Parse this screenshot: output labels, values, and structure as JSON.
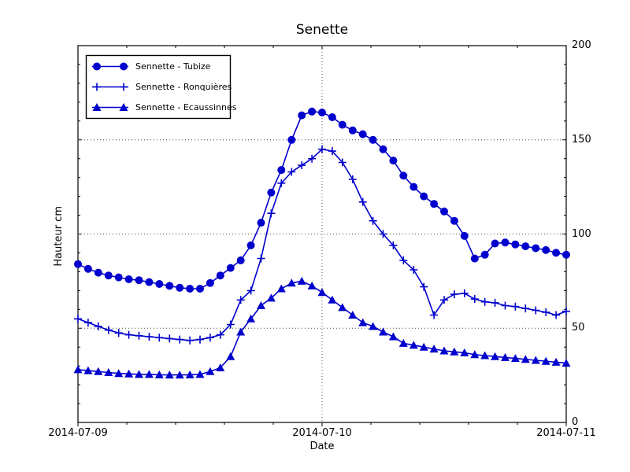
{
  "figure": {
    "background": "#ffffff",
    "accent_color": "#0000cd",
    "axis_color": "#000000",
    "grid_style": "dotted"
  },
  "chart_data": {
    "type": "line",
    "title": "Senette",
    "xlabel": "Date",
    "ylabel": "Hauteur cm",
    "x_tick_labels": [
      "2014-07-09",
      "2014-07-10",
      "2014-07-11"
    ],
    "y_tick_labels": [
      "0",
      "50",
      "100",
      "150",
      "200"
    ],
    "y_ticks": [
      0,
      50,
      100,
      150,
      200
    ],
    "ylim": [
      0,
      200
    ],
    "x_start": "2014-07-09 00:00",
    "x_end": "2014-07-11 00:00",
    "x_step_hours": 1,
    "grid": "major gridlines dotted; y tick labels on right side",
    "legend_position": "upper left",
    "line_color": "#0000cd",
    "series": [
      {
        "name": "Sennette - Tubize",
        "marker": "circle",
        "values": [
          84,
          81.5,
          79.5,
          78,
          77,
          76,
          75.5,
          74.5,
          73.5,
          72.5,
          71.5,
          71,
          71,
          74,
          78,
          82,
          86,
          94,
          106,
          122,
          134,
          150,
          163,
          165,
          164.5,
          162,
          158,
          155,
          153,
          150,
          145,
          139,
          131,
          125,
          120,
          116,
          112,
          107,
          99,
          87,
          89,
          95,
          95.5,
          94.5,
          93.5,
          92.5,
          91.5,
          90,
          89
        ]
      },
      {
        "name": "Sennette - Ronquières",
        "marker": "plus",
        "values": [
          55,
          53,
          51,
          49,
          47.5,
          46.5,
          46,
          45.5,
          45,
          44.5,
          44,
          43.5,
          44,
          45,
          46.5,
          52,
          65,
          70,
          87,
          111,
          127,
          133,
          136.5,
          140,
          145,
          144,
          138,
          129,
          117,
          107,
          100,
          94,
          86,
          81,
          72,
          57,
          65,
          68,
          68.5,
          65.5,
          64,
          63.5,
          62,
          61.5,
          60.5,
          59.5,
          58.5,
          57,
          59
        ]
      },
      {
        "name": "Sennette - Ecaussinnes",
        "marker": "triangle",
        "values": [
          28,
          27.5,
          27,
          26.5,
          26,
          25.8,
          25.5,
          25.5,
          25.3,
          25.2,
          25.2,
          25.3,
          25.5,
          27,
          29,
          35,
          48,
          55,
          62,
          66,
          71,
          74,
          75,
          72.5,
          69,
          65,
          61,
          57,
          53,
          51,
          48,
          45.5,
          42,
          41,
          40,
          39,
          38,
          37.5,
          37,
          36,
          35.5,
          35,
          34.5,
          34,
          33.5,
          33,
          32.5,
          32,
          31.5
        ]
      }
    ]
  }
}
